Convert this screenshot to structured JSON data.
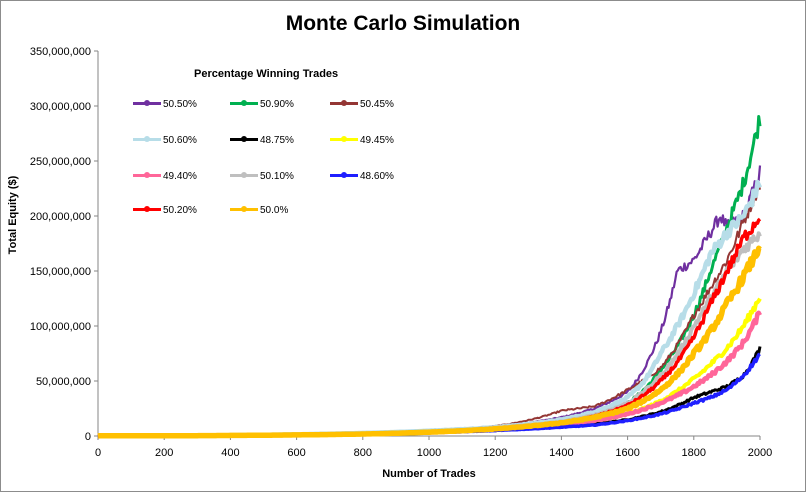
{
  "chart_data": {
    "type": "line",
    "title": "Monte Carlo Simulation",
    "xlabel": "Number of Trades",
    "ylabel": "Total Equity ($)",
    "xlim": [
      0,
      2000
    ],
    "ylim": [
      0,
      350000000
    ],
    "x_ticks": [
      0,
      200,
      400,
      600,
      800,
      1000,
      1200,
      1400,
      1600,
      1800,
      2000
    ],
    "y_ticks": [
      0,
      50000000,
      100000000,
      150000000,
      200000000,
      250000000,
      300000000,
      350000000
    ],
    "y_tick_labels": [
      "0",
      "50,000,000",
      "100,000,000",
      "150,000,000",
      "200,000,000",
      "250,000,000",
      "300,000,000",
      "350,000,000"
    ],
    "legend_title": "Percentage Winning Trades",
    "legend_position": "top-left",
    "grid": false,
    "series": [
      {
        "name": "50.50%",
        "color": "#7030a0",
        "x": [
          0,
          200,
          400,
          600,
          800,
          1000,
          1200,
          1400,
          1500,
          1600,
          1700,
          1750,
          1800,
          1850,
          1880,
          1900,
          1950,
          2000
        ],
        "values": [
          0,
          300000,
          800000,
          1600000,
          2800000,
          4800000,
          8500000,
          17000000,
          25000000,
          40000000,
          95000000,
          150000000,
          160000000,
          185000000,
          200000000,
          190000000,
          200000000,
          240000000
        ]
      },
      {
        "name": "50.90%",
        "color": "#00b050",
        "x": [
          0,
          200,
          400,
          600,
          800,
          1000,
          1200,
          1400,
          1500,
          1600,
          1700,
          1800,
          1850,
          1900,
          1950,
          2000
        ],
        "values": [
          0,
          300000,
          800000,
          1600000,
          2800000,
          4800000,
          8000000,
          12000000,
          18000000,
          30000000,
          60000000,
          110000000,
          150000000,
          190000000,
          230000000,
          290000000
        ]
      },
      {
        "name": "50.45%",
        "color": "#943634",
        "x": [
          0,
          200,
          400,
          600,
          800,
          1000,
          1200,
          1400,
          1500,
          1600,
          1700,
          1800,
          1850,
          1900,
          1950,
          2000
        ],
        "values": [
          0,
          300000,
          800000,
          1600000,
          2800000,
          4800000,
          9000000,
          23000000,
          27000000,
          42000000,
          62000000,
          110000000,
          135000000,
          160000000,
          195000000,
          230000000
        ]
      },
      {
        "name": "50.60%",
        "color": "#b7dde8",
        "x": [
          0,
          200,
          400,
          600,
          800,
          1000,
          1200,
          1400,
          1500,
          1600,
          1650,
          1700,
          1750,
          1800,
          1850,
          1900,
          1950,
          2000
        ],
        "values": [
          0,
          300000,
          800000,
          1600000,
          2800000,
          4800000,
          8000000,
          15000000,
          22000000,
          35000000,
          50000000,
          75000000,
          100000000,
          130000000,
          165000000,
          185000000,
          200000000,
          230000000
        ]
      },
      {
        "name": "48.75%",
        "color": "#000000",
        "x": [
          0,
          200,
          400,
          600,
          800,
          1000,
          1200,
          1400,
          1500,
          1600,
          1700,
          1800,
          1850,
          1900,
          1950,
          2000
        ],
        "values": [
          0,
          200000,
          500000,
          1000000,
          1800000,
          3000000,
          5000000,
          8500000,
          11000000,
          15000000,
          22000000,
          35000000,
          40000000,
          45000000,
          55000000,
          80000000
        ]
      },
      {
        "name": "49.45%",
        "color": "#ffff00",
        "x": [
          0,
          200,
          400,
          600,
          800,
          1000,
          1200,
          1400,
          1500,
          1600,
          1700,
          1800,
          1850,
          1900,
          1950,
          2000
        ],
        "values": [
          0,
          200000,
          500000,
          1000000,
          1800000,
          3200000,
          6000000,
          10000000,
          14000000,
          20000000,
          32000000,
          52000000,
          65000000,
          80000000,
          100000000,
          127000000
        ]
      },
      {
        "name": "49.40%",
        "color": "#ff6699",
        "x": [
          0,
          200,
          400,
          600,
          800,
          1000,
          1200,
          1400,
          1500,
          1600,
          1700,
          1800,
          1850,
          1900,
          1950,
          2000
        ],
        "values": [
          0,
          200000,
          500000,
          1000000,
          1800000,
          3200000,
          6000000,
          10000000,
          14000000,
          20000000,
          30000000,
          45000000,
          55000000,
          68000000,
          85000000,
          113000000
        ]
      },
      {
        "name": "50.10%",
        "color": "#bfbfbf",
        "x": [
          0,
          200,
          400,
          600,
          800,
          1000,
          1200,
          1400,
          1500,
          1600,
          1700,
          1800,
          1850,
          1900,
          1950,
          2000
        ],
        "values": [
          0,
          250000,
          600000,
          1200000,
          2200000,
          4000000,
          7500000,
          13000000,
          19000000,
          30000000,
          55000000,
          100000000,
          125000000,
          150000000,
          170000000,
          185000000
        ]
      },
      {
        "name": "48.60%",
        "color": "#1f1fff",
        "x": [
          0,
          200,
          400,
          600,
          800,
          1000,
          1200,
          1400,
          1500,
          1600,
          1700,
          1800,
          1850,
          1900,
          1950,
          2000
        ],
        "values": [
          0,
          200000,
          500000,
          1000000,
          1800000,
          3000000,
          5000000,
          8000000,
          10000000,
          14000000,
          20000000,
          30000000,
          35000000,
          42000000,
          55000000,
          75000000
        ]
      },
      {
        "name": "50.20%",
        "color": "#ff0000",
        "x": [
          0,
          200,
          400,
          600,
          800,
          1000,
          1200,
          1400,
          1500,
          1600,
          1700,
          1800,
          1850,
          1900,
          1950,
          2000
        ],
        "values": [
          0,
          250000,
          600000,
          1200000,
          2200000,
          4000000,
          7000000,
          12000000,
          18000000,
          28000000,
          50000000,
          90000000,
          120000000,
          150000000,
          180000000,
          200000000
        ]
      },
      {
        "name": "50.0%",
        "color": "#ffc000",
        "x": [
          0,
          200,
          400,
          600,
          800,
          1000,
          1200,
          1400,
          1500,
          1600,
          1700,
          1800,
          1850,
          1900,
          1950,
          2000
        ],
        "values": [
          0,
          200000,
          500000,
          1000000,
          1800000,
          3500000,
          6500000,
          12000000,
          17000000,
          25000000,
          42000000,
          75000000,
          95000000,
          120000000,
          145000000,
          173000000
        ]
      }
    ]
  }
}
